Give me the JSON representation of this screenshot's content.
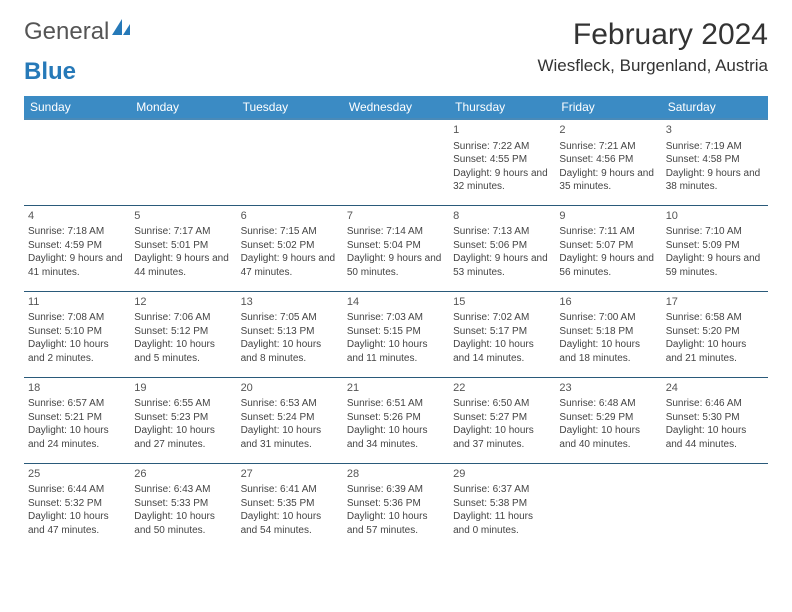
{
  "brand": {
    "part1": "General",
    "part2": "Blue"
  },
  "title": "February 2024",
  "location": "Wiesfleck, Burgenland, Austria",
  "colors": {
    "header_bg": "#3b8bc4",
    "header_text": "#ffffff",
    "border": "#2a5a7a",
    "brand_blue": "#2679b8",
    "text": "#444444"
  },
  "weekdays": [
    "Sunday",
    "Monday",
    "Tuesday",
    "Wednesday",
    "Thursday",
    "Friday",
    "Saturday"
  ],
  "weeks": [
    [
      {
        "day": "",
        "lines": []
      },
      {
        "day": "",
        "lines": []
      },
      {
        "day": "",
        "lines": []
      },
      {
        "day": "",
        "lines": []
      },
      {
        "day": "1",
        "lines": [
          "Sunrise: 7:22 AM",
          "Sunset: 4:55 PM",
          "Daylight: 9 hours and 32 minutes."
        ]
      },
      {
        "day": "2",
        "lines": [
          "Sunrise: 7:21 AM",
          "Sunset: 4:56 PM",
          "Daylight: 9 hours and 35 minutes."
        ]
      },
      {
        "day": "3",
        "lines": [
          "Sunrise: 7:19 AM",
          "Sunset: 4:58 PM",
          "Daylight: 9 hours and 38 minutes."
        ]
      }
    ],
    [
      {
        "day": "4",
        "lines": [
          "Sunrise: 7:18 AM",
          "Sunset: 4:59 PM",
          "Daylight: 9 hours and 41 minutes."
        ]
      },
      {
        "day": "5",
        "lines": [
          "Sunrise: 7:17 AM",
          "Sunset: 5:01 PM",
          "Daylight: 9 hours and 44 minutes."
        ]
      },
      {
        "day": "6",
        "lines": [
          "Sunrise: 7:15 AM",
          "Sunset: 5:02 PM",
          "Daylight: 9 hours and 47 minutes."
        ]
      },
      {
        "day": "7",
        "lines": [
          "Sunrise: 7:14 AM",
          "Sunset: 5:04 PM",
          "Daylight: 9 hours and 50 minutes."
        ]
      },
      {
        "day": "8",
        "lines": [
          "Sunrise: 7:13 AM",
          "Sunset: 5:06 PM",
          "Daylight: 9 hours and 53 minutes."
        ]
      },
      {
        "day": "9",
        "lines": [
          "Sunrise: 7:11 AM",
          "Sunset: 5:07 PM",
          "Daylight: 9 hours and 56 minutes."
        ]
      },
      {
        "day": "10",
        "lines": [
          "Sunrise: 7:10 AM",
          "Sunset: 5:09 PM",
          "Daylight: 9 hours and 59 minutes."
        ]
      }
    ],
    [
      {
        "day": "11",
        "lines": [
          "Sunrise: 7:08 AM",
          "Sunset: 5:10 PM",
          "Daylight: 10 hours and 2 minutes."
        ]
      },
      {
        "day": "12",
        "lines": [
          "Sunrise: 7:06 AM",
          "Sunset: 5:12 PM",
          "Daylight: 10 hours and 5 minutes."
        ]
      },
      {
        "day": "13",
        "lines": [
          "Sunrise: 7:05 AM",
          "Sunset: 5:13 PM",
          "Daylight: 10 hours and 8 minutes."
        ]
      },
      {
        "day": "14",
        "lines": [
          "Sunrise: 7:03 AM",
          "Sunset: 5:15 PM",
          "Daylight: 10 hours and 11 minutes."
        ]
      },
      {
        "day": "15",
        "lines": [
          "Sunrise: 7:02 AM",
          "Sunset: 5:17 PM",
          "Daylight: 10 hours and 14 minutes."
        ]
      },
      {
        "day": "16",
        "lines": [
          "Sunrise: 7:00 AM",
          "Sunset: 5:18 PM",
          "Daylight: 10 hours and 18 minutes."
        ]
      },
      {
        "day": "17",
        "lines": [
          "Sunrise: 6:58 AM",
          "Sunset: 5:20 PM",
          "Daylight: 10 hours and 21 minutes."
        ]
      }
    ],
    [
      {
        "day": "18",
        "lines": [
          "Sunrise: 6:57 AM",
          "Sunset: 5:21 PM",
          "Daylight: 10 hours and 24 minutes."
        ]
      },
      {
        "day": "19",
        "lines": [
          "Sunrise: 6:55 AM",
          "Sunset: 5:23 PM",
          "Daylight: 10 hours and 27 minutes."
        ]
      },
      {
        "day": "20",
        "lines": [
          "Sunrise: 6:53 AM",
          "Sunset: 5:24 PM",
          "Daylight: 10 hours and 31 minutes."
        ]
      },
      {
        "day": "21",
        "lines": [
          "Sunrise: 6:51 AM",
          "Sunset: 5:26 PM",
          "Daylight: 10 hours and 34 minutes."
        ]
      },
      {
        "day": "22",
        "lines": [
          "Sunrise: 6:50 AM",
          "Sunset: 5:27 PM",
          "Daylight: 10 hours and 37 minutes."
        ]
      },
      {
        "day": "23",
        "lines": [
          "Sunrise: 6:48 AM",
          "Sunset: 5:29 PM",
          "Daylight: 10 hours and 40 minutes."
        ]
      },
      {
        "day": "24",
        "lines": [
          "Sunrise: 6:46 AM",
          "Sunset: 5:30 PM",
          "Daylight: 10 hours and 44 minutes."
        ]
      }
    ],
    [
      {
        "day": "25",
        "lines": [
          "Sunrise: 6:44 AM",
          "Sunset: 5:32 PM",
          "Daylight: 10 hours and 47 minutes."
        ]
      },
      {
        "day": "26",
        "lines": [
          "Sunrise: 6:43 AM",
          "Sunset: 5:33 PM",
          "Daylight: 10 hours and 50 minutes."
        ]
      },
      {
        "day": "27",
        "lines": [
          "Sunrise: 6:41 AM",
          "Sunset: 5:35 PM",
          "Daylight: 10 hours and 54 minutes."
        ]
      },
      {
        "day": "28",
        "lines": [
          "Sunrise: 6:39 AM",
          "Sunset: 5:36 PM",
          "Daylight: 10 hours and 57 minutes."
        ]
      },
      {
        "day": "29",
        "lines": [
          "Sunrise: 6:37 AM",
          "Sunset: 5:38 PM",
          "Daylight: 11 hours and 0 minutes."
        ]
      },
      {
        "day": "",
        "lines": []
      },
      {
        "day": "",
        "lines": []
      }
    ]
  ]
}
